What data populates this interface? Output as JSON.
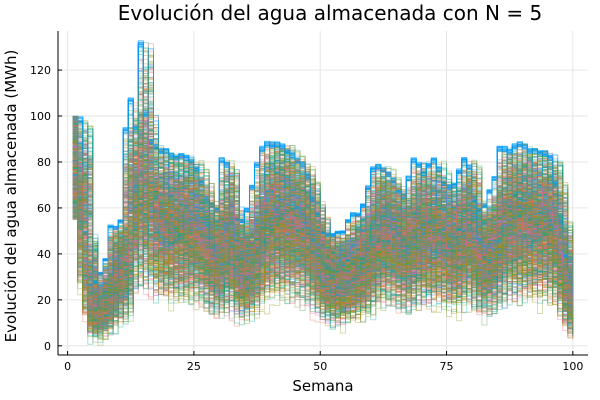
{
  "chart_data": {
    "type": "line",
    "title": "Evolución del agua almacenada con N = 5",
    "xlabel": "Semana",
    "ylabel": "Evolución del agua almacenada (MWh)",
    "xlim": [
      -1.9,
      103
    ],
    "ylim": [
      -4,
      137
    ],
    "x_ticks": [
      0,
      25,
      50,
      75,
      100
    ],
    "y_ticks": [
      0,
      20,
      40,
      60,
      80,
      100,
      120
    ],
    "grid": true,
    "legend": "none",
    "ensemble": {
      "num_simulations": 1000,
      "weeks": 100,
      "x_start": 1,
      "upper_envelope": [
        [
          1,
          100
        ],
        [
          2,
          100
        ],
        [
          3,
          50
        ],
        [
          4,
          27
        ],
        [
          5,
          28
        ],
        [
          6,
          32
        ],
        [
          7,
          38
        ],
        [
          8,
          53
        ],
        [
          9,
          52
        ],
        [
          10,
          55
        ],
        [
          11,
          95
        ],
        [
          12,
          108
        ],
        [
          13,
          96
        ],
        [
          14,
          133
        ],
        [
          15,
          103
        ],
        [
          16,
          90
        ],
        [
          17,
          88
        ],
        [
          18,
          86
        ],
        [
          19,
          86
        ],
        [
          20,
          84
        ],
        [
          21,
          83
        ],
        [
          22,
          84
        ],
        [
          23,
          83
        ],
        [
          24,
          82
        ],
        [
          25,
          78
        ],
        [
          26,
          72
        ],
        [
          27,
          65
        ],
        [
          28,
          62
        ],
        [
          29,
          60
        ],
        [
          30,
          82
        ],
        [
          31,
          80
        ],
        [
          32,
          62
        ],
        [
          33,
          56
        ],
        [
          34,
          55
        ],
        [
          35,
          60
        ],
        [
          36,
          70
        ],
        [
          37,
          80
        ],
        [
          38,
          87
        ],
        [
          39,
          89
        ],
        [
          40,
          89
        ],
        [
          41,
          89
        ],
        [
          42,
          88
        ],
        [
          43,
          86
        ],
        [
          44,
          84
        ],
        [
          45,
          82
        ],
        [
          46,
          80
        ],
        [
          47,
          75
        ],
        [
          48,
          65
        ],
        [
          49,
          58
        ],
        [
          50,
          50
        ],
        [
          51,
          49
        ],
        [
          52,
          49
        ],
        [
          53,
          50
        ],
        [
          54,
          50
        ],
        [
          55,
          55
        ],
        [
          56,
          58
        ],
        [
          57,
          58
        ],
        [
          58,
          62
        ],
        [
          59,
          70
        ],
        [
          60,
          78
        ],
        [
          61,
          79
        ],
        [
          62,
          78
        ],
        [
          63,
          76
        ],
        [
          64,
          73
        ],
        [
          65,
          68
        ],
        [
          66,
          66
        ],
        [
          67,
          74
        ],
        [
          68,
          82
        ],
        [
          69,
          80
        ],
        [
          70,
          76
        ],
        [
          71,
          80
        ],
        [
          72,
          82
        ],
        [
          73,
          78
        ],
        [
          74,
          72
        ],
        [
          75,
          70
        ],
        [
          76,
          71
        ],
        [
          77,
          77
        ],
        [
          78,
          82
        ],
        [
          79,
          79
        ],
        [
          80,
          64
        ],
        [
          81,
          60
        ],
        [
          82,
          62
        ],
        [
          83,
          68
        ],
        [
          84,
          74
        ],
        [
          85,
          87
        ],
        [
          86,
          87
        ],
        [
          87,
          86
        ],
        [
          88,
          88
        ],
        [
          89,
          89
        ],
        [
          90,
          88
        ],
        [
          91,
          86
        ],
        [
          92,
          86
        ],
        [
          93,
          85
        ],
        [
          94,
          85
        ],
        [
          95,
          83
        ],
        [
          96,
          72
        ],
        [
          97,
          55
        ],
        [
          98,
          40
        ],
        [
          99,
          30
        ],
        [
          100,
          25
        ]
      ],
      "lower_bound": 0,
      "colors": [
        "#009AFA",
        "#E36F47",
        "#3EA44E",
        "#C371D2",
        "#AC8E18",
        "#00AAAE",
        "#ED5E93",
        "#C68225",
        "#00A98D",
        "#8E971D"
      ]
    }
  }
}
